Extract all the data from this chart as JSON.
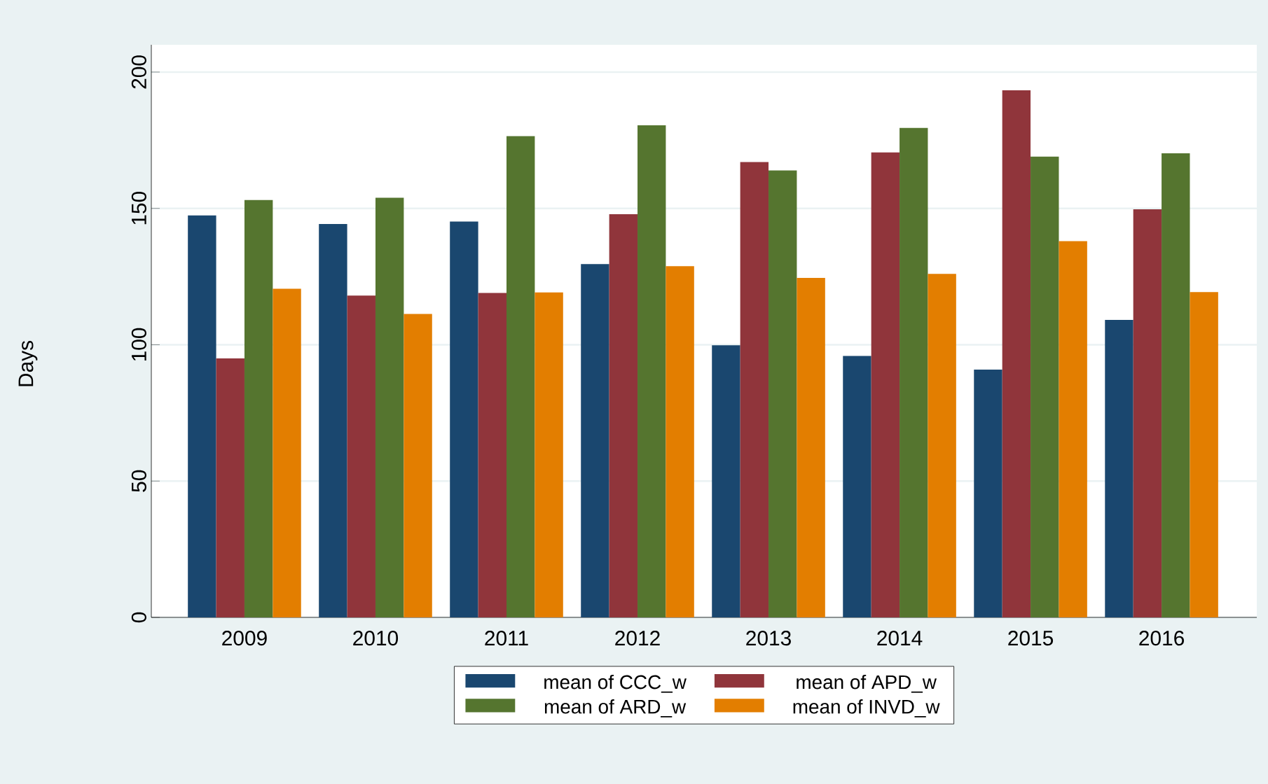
{
  "chart_data": {
    "type": "bar",
    "ylabel": "Days",
    "categories": [
      "2009",
      "2010",
      "2011",
      "2012",
      "2013",
      "2014",
      "2015",
      "2016"
    ],
    "series": [
      {
        "name": "mean of CCC_w",
        "color": "#1a476f",
        "values": [
          147.4,
          144.3,
          145.2,
          129.6,
          99.8,
          95.9,
          90.9,
          109.1
        ]
      },
      {
        "name": "mean of APD_w",
        "color": "#90353b",
        "values": [
          95.0,
          118.0,
          119.0,
          147.9,
          167.0,
          170.5,
          193.3,
          149.7
        ]
      },
      {
        "name": "mean of ARD_w",
        "color": "#55752f",
        "values": [
          153.1,
          153.9,
          176.5,
          180.5,
          163.9,
          179.5,
          169.0,
          170.2
        ]
      },
      {
        "name": "mean of INVD_w",
        "color": "#e37e00",
        "values": [
          120.5,
          111.3,
          119.2,
          128.8,
          124.5,
          126.0,
          138.0,
          119.3
        ]
      }
    ],
    "ylim": [
      0,
      210
    ],
    "yticks": [
      0,
      50,
      100,
      150,
      200
    ],
    "grid": "y",
    "legend": "bottom"
  }
}
